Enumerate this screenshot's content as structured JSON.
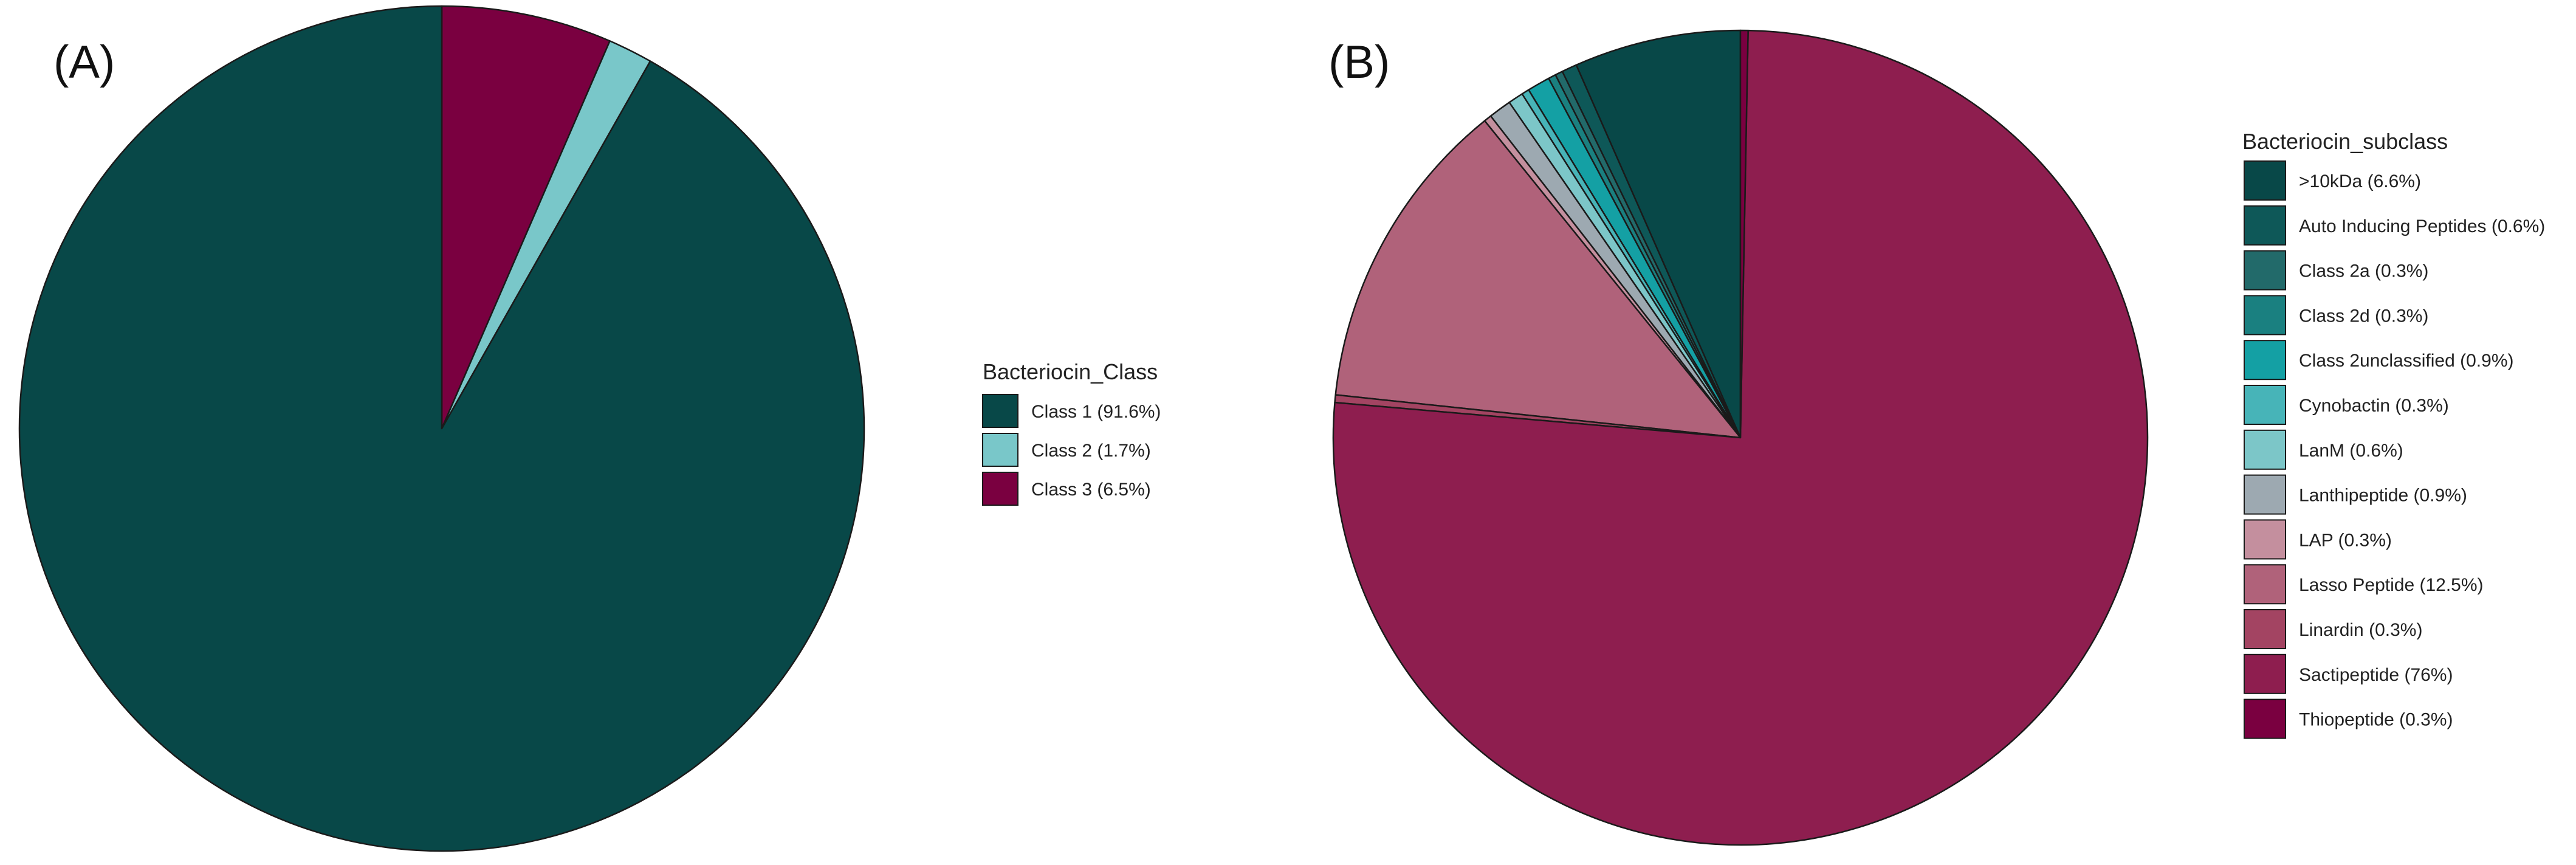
{
  "chart_data": [
    {
      "type": "pie",
      "panel_label": "(A)",
      "legend_title": "Bacteriocin_Class",
      "start_angle_deg": 0,
      "direction": "clockwise",
      "slice_order": [
        2,
        1,
        0
      ],
      "slices": [
        {
          "label": "Class 1 (91.6%)",
          "value": 91.6,
          "color": "#084848"
        },
        {
          "label": "Class 2 (1.7%)",
          "value": 1.7,
          "color": "#79C7C9"
        },
        {
          "label": "Class 3 (6.5%)",
          "value": 6.5,
          "color": "#7A0040"
        }
      ]
    },
    {
      "type": "pie",
      "panel_label": "(B)",
      "legend_title": "Bacteriocin_subclass",
      "start_angle_deg": 0,
      "direction": "counterclockwise",
      "slice_order": [
        0,
        1,
        2,
        3,
        4,
        5,
        6,
        7,
        8,
        9,
        10,
        11,
        12
      ],
      "slices": [
        {
          "label": ">10kDa (6.6%)",
          "value": 6.6,
          "color": "#084848"
        },
        {
          "label": "Auto Inducing Peptides (0.6%)",
          "value": 0.6,
          "color": "#0E5858"
        },
        {
          "label": "Class 2a  (0.3%)",
          "value": 0.3,
          "color": "#226A6A"
        },
        {
          "label": "Class 2d  (0.3%)",
          "value": 0.3,
          "color": "#1A8080"
        },
        {
          "label": "Class 2unclassified  (0.9%)",
          "value": 0.9,
          "color": "#14A0A4"
        },
        {
          "label": "Cynobactin  (0.3%)",
          "value": 0.3,
          "color": "#47B4B8"
        },
        {
          "label": "LanM (0.6%)",
          "value": 0.6,
          "color": "#7CC6C8"
        },
        {
          "label": "Lanthipeptide (0.9%)",
          "value": 0.9,
          "color": "#9DA9B1"
        },
        {
          "label": "LAP  (0.3%)",
          "value": 0.3,
          "color": "#C48F9E"
        },
        {
          "label": "Lasso Peptide (12.5%)",
          "value": 12.5,
          "color": "#B0627A"
        },
        {
          "label": "Linardin (0.3%)",
          "value": 0.3,
          "color": "#A34462"
        },
        {
          "label": "Sactipeptide (76%)",
          "value": 76,
          "color": "#8E1E4F"
        },
        {
          "label": "Thiopeptide (0.3%)",
          "value": 0.3,
          "color": "#7A0040"
        }
      ]
    }
  ]
}
